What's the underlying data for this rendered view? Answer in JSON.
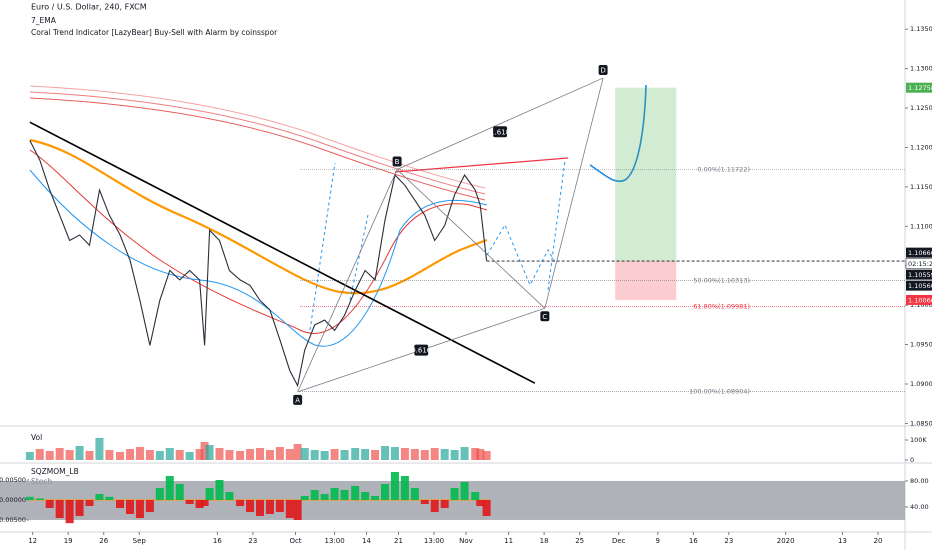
{
  "chart_data": [
    {
      "type": "line",
      "title": "Euro / U.S. Dollar, 240, FXCM",
      "indicators": [
        "7_EMA",
        "Coral Trend Indicator [LazyBear] Buy-Sell with Alarm by coinsspor"
      ],
      "color": "#2a2e39",
      "x": [
        -0.4,
        1.0,
        2.4,
        3.8,
        5.2,
        6.6,
        8.0,
        9.4,
        10.8,
        12.3,
        13.7,
        15.1,
        16.5,
        17.9,
        19.3,
        20.7,
        22.1,
        23.5,
        24.2,
        24.9,
        26.3,
        27.7,
        29.2,
        30.6,
        32.0,
        33.4,
        34.8,
        36.2,
        37.3,
        38.3,
        39.7,
        41.1,
        42.5,
        43.9,
        45.4,
        46.8,
        48.2,
        49.6,
        51.0,
        52.4,
        53.8,
        55.2,
        56.6,
        58.0,
        59.4,
        60.8,
        62.3,
        63.0,
        63.9
      ],
      "values": [
        1.1209,
        1.1184,
        1.1146,
        1.1114,
        1.1082,
        1.1089,
        1.1076,
        1.1146,
        1.1114,
        1.1089,
        1.1057,
        1.1006,
        1.0949,
        1.1006,
        1.1044,
        1.1032,
        1.1044,
        1.1032,
        1.0949,
        1.1095,
        1.1082,
        1.1044,
        1.1032,
        1.1025,
        1.1006,
        1.0994,
        1.0956,
        1.0917,
        1.0898,
        1.0943,
        1.0975,
        1.0981,
        1.0968,
        1.0987,
        1.1019,
        1.1044,
        1.1032,
        1.1108,
        1.1165,
        1.1152,
        1.1133,
        1.1114,
        1.1082,
        1.1101,
        1.114,
        1.1165,
        1.1146,
        1.1127,
        1.1056
      ],
      "xlim": [
        -4.6,
        122.8
      ],
      "xticks": [
        {
          "value": 0,
          "label": "12"
        },
        {
          "value": 5,
          "label": "19"
        },
        {
          "value": 10,
          "label": "26"
        },
        {
          "value": 15,
          "label": "Sep"
        },
        {
          "value": 26,
          "label": "16"
        },
        {
          "value": 31,
          "label": "23"
        },
        {
          "value": 37,
          "label": "Oct"
        },
        {
          "value": 42.5,
          "label": "13:00"
        },
        {
          "value": 47,
          "label": "14"
        },
        {
          "value": 51.5,
          "label": "21"
        },
        {
          "value": 56.5,
          "label": "13:00"
        },
        {
          "value": 61,
          "label": "Nov"
        },
        {
          "value": 67,
          "label": "11"
        },
        {
          "value": 72,
          "label": "18"
        },
        {
          "value": 77,
          "label": "25"
        },
        {
          "value": 82.5,
          "label": "Dec"
        },
        {
          "value": 88,
          "label": "9"
        },
        {
          "value": 93,
          "label": "16"
        },
        {
          "value": 98,
          "label": "23"
        },
        {
          "value": 106,
          "label": "2020"
        },
        {
          "value": 114,
          "label": "13"
        },
        {
          "value": 119,
          "label": "20"
        }
      ],
      "ylim": [
        1.0848,
        1.1387
      ],
      "yticks": [
        {
          "value": 1.085,
          "label": "1.08500"
        },
        {
          "value": 1.09,
          "label": "1.09000"
        },
        {
          "value": 1.095,
          "label": "1.09500"
        },
        {
          "value": 1.1,
          "label": "1.10000"
        },
        {
          "value": 1.105,
          "label": "1.10500"
        },
        {
          "value": 1.11,
          "label": "1.11000"
        },
        {
          "value": 1.115,
          "label": "1.11500"
        },
        {
          "value": 1.12,
          "label": "1.12000"
        },
        {
          "value": 1.125,
          "label": "1.12500"
        },
        {
          "value": 1.13,
          "label": "1.13000"
        },
        {
          "value": 1.135,
          "label": "1.13500"
        }
      ],
      "price_labels": [
        {
          "value": 1.12758,
          "label": "1.12758",
          "color": "#4caf50"
        },
        {
          "value": 1.10666,
          "label": "1.10666",
          "color": "#131722"
        },
        {
          "value": 1.10559,
          "label": "1.10559",
          "color": "#131722"
        },
        {
          "value": 1.1056,
          "label": "1.10560",
          "color": "#131722"
        },
        {
          "value": 1.10066,
          "label": "1.10066",
          "color": "#f23645"
        }
      ],
      "countdown": "02:15:22",
      "fib_levels": [
        {
          "value": 1.11722,
          "label": "0.00%(1.11722)",
          "color": "#787b86"
        },
        {
          "value": 1.10313,
          "label": "50.00%(1.10313)",
          "color": "#787b86"
        },
        {
          "value": 1.09981,
          "label": "61.80%(1.09981)",
          "color": "#f23645"
        },
        {
          "value": 1.08904,
          "label": "100.00%(1.08904)",
          "color": "#787b86"
        }
      ],
      "pattern": {
        "points": [
          {
            "label": "A",
            "x": 37.3,
            "value": 1.089
          },
          {
            "label": "B",
            "x": 51.3,
            "value": 1.1172
          },
          {
            "label": "C",
            "x": 72.1,
            "value": 1.0996
          },
          {
            "label": "D",
            "x": 80.3,
            "value": 1.1288
          }
        ],
        "ratios": [
          "1.618",
          "0.616"
        ]
      },
      "trendline": {
        "x": [
          -0.4,
          70.7
        ],
        "values": [
          1.1232,
          1.0901
        ]
      },
      "position": {
        "x": [
          82.0,
          90.6
        ],
        "target": 1.12758,
        "entry": 1.10559,
        "stop": 1.10066
      }
    },
    {
      "type": "bar",
      "title": "Vol",
      "up_color": "#26a69a",
      "down_color": "#ef5350",
      "values": [
        40000,
        55000,
        45000,
        60000,
        50000,
        70000,
        45000,
        110000,
        50000,
        40000,
        55000,
        65000,
        50000,
        45000,
        60000,
        50000,
        40000,
        55000,
        90000,
        75000,
        60000,
        50000,
        45000,
        55000,
        60000,
        50000,
        65000,
        55000,
        80000,
        60000,
        50000,
        45000,
        55000,
        50000,
        60000,
        55000,
        50000,
        70000,
        65000,
        60000,
        55000,
        50000,
        60000,
        55000,
        50000,
        65000,
        60000,
        55000,
        45000
      ],
      "ylim": [
        0,
        160000
      ],
      "yticks": [
        0,
        {
          "value": 100000,
          "label": "100K"
        }
      ]
    },
    {
      "type": "bar",
      "title": "SQZMOM_LB",
      "subtitle": "Stoch",
      "up_color": "#00b94e",
      "down_color": "#e0161b",
      "values": [
        0.0008,
        0.0004,
        -0.002,
        -0.0045,
        -0.0058,
        -0.004,
        -0.0015,
        0.0015,
        0.0008,
        -0.002,
        -0.0035,
        -0.0045,
        -0.003,
        0.003,
        0.006,
        0.004,
        -0.001,
        -0.002,
        -0.0015,
        0.003,
        0.005,
        0.002,
        -0.0015,
        -0.003,
        -0.004,
        -0.0035,
        -0.003,
        -0.0045,
        -0.005,
        0.001,
        0.0025,
        0.0015,
        0.003,
        0.0025,
        0.0035,
        0.002,
        0.001,
        0.004,
        0.007,
        0.006,
        0.003,
        -0.001,
        -0.003,
        -0.002,
        0.003,
        0.0045,
        0.002,
        -0.0015,
        -0.004
      ],
      "ylim": [
        -0.00775,
        0.0085
      ],
      "yticks": [
        {
          "value": -0.005,
          "label": "-0.00500"
        },
        {
          "value": 0,
          "label": "0.00000"
        },
        {
          "value": 0.005,
          "label": "0.00500"
        }
      ],
      "y2lim": [
        3,
        103
      ],
      "y2ticks": [
        {
          "value": 40,
          "label": "40.00"
        },
        {
          "value": 80,
          "label": "80.00"
        }
      ]
    }
  ]
}
